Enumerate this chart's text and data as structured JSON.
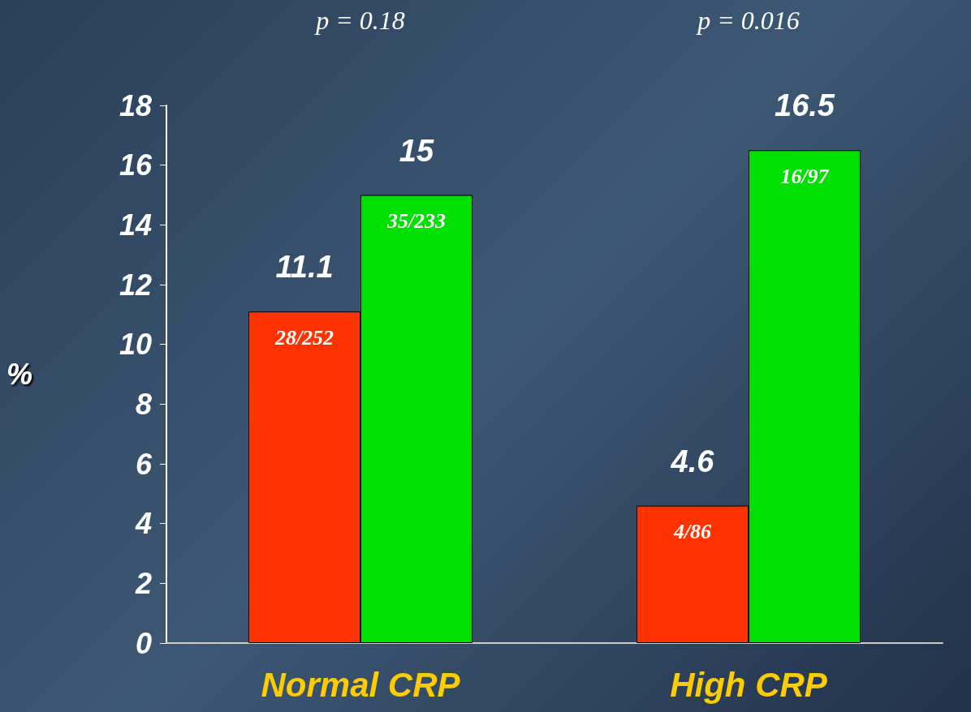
{
  "chart_data": {
    "type": "bar",
    "categories": [
      "Normal CRP",
      "High CRP"
    ],
    "ylabel": "%",
    "series": [
      {
        "color": "#ff3300",
        "values": [
          11.1,
          4.6
        ]
      },
      {
        "color": "#00e000",
        "values": [
          15,
          16.5
        ]
      }
    ],
    "ylim": [
      0,
      18
    ],
    "yticks": [
      0,
      2,
      4,
      6,
      8,
      10,
      12,
      14,
      16,
      18
    ],
    "data_labels": true,
    "grid": false,
    "annotations": [
      "p = 0.18",
      "p = 0.016",
      {
        "text": "28/252",
        "x": "Normal CRP",
        "y": 11.1
      },
      {
        "text": "35/233",
        "x": "Normal CRP",
        "y": 15
      },
      {
        "text": "4/86",
        "x": "High CRP",
        "y": 4.6
      },
      {
        "text": "16/97",
        "x": "High CRP",
        "y": 16.5
      }
    ]
  }
}
